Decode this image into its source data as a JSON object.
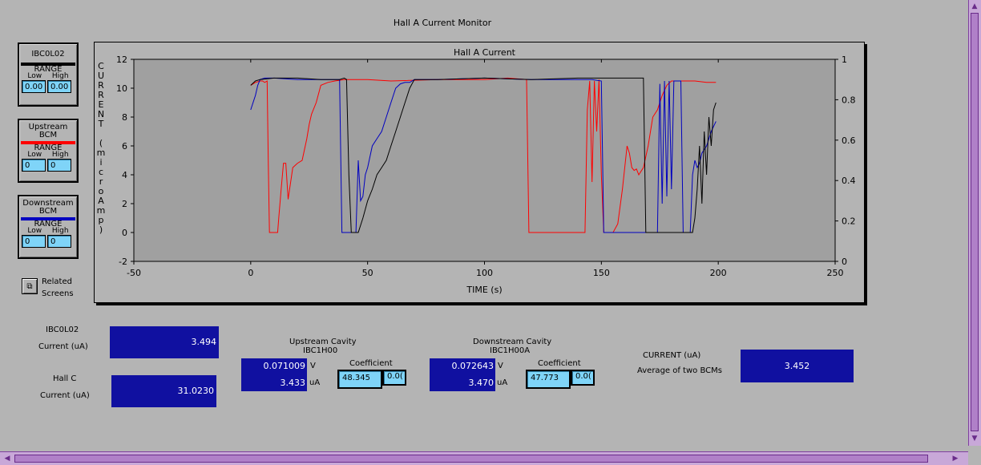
{
  "window": {
    "title": "Hall A Current Monitor"
  },
  "legends": [
    {
      "name": "IBC0L02",
      "color": "#000000",
      "range_label": "RANGE",
      "low_label": "Low",
      "high_label": "High",
      "low": "0.00",
      "high": "0.00"
    },
    {
      "name": "Upstream BCM",
      "color": "#ff0000",
      "range_label": "RANGE",
      "low_label": "Low",
      "high_label": "High",
      "low": "0",
      "high": "0"
    },
    {
      "name": "Downstream BCM",
      "color": "#0000c0",
      "range_label": "RANGE",
      "low_label": "Low",
      "high_label": "High",
      "low": "0",
      "high": "0"
    }
  ],
  "related": {
    "label_line1": "Related",
    "label_line2": "Screens",
    "icon": "related-screens-icon"
  },
  "chart_data": {
    "type": "line",
    "title": "Hall A Current",
    "xlabel": "TIME (s)",
    "ylabel": "CURRENT (microAmp)",
    "xlim": [
      -50,
      250
    ],
    "ylim": [
      -2,
      12
    ],
    "y2lim": [
      0,
      1
    ],
    "xticks": [
      -50,
      0,
      50,
      100,
      150,
      200,
      250
    ],
    "yticks": [
      -2,
      0,
      2,
      4,
      6,
      8,
      10,
      12
    ],
    "y2ticks": [
      0,
      0.2,
      0.4,
      0.6,
      0.8,
      1
    ],
    "grid": false,
    "series": [
      {
        "color": "#ff0000",
        "x": [
          0,
          2,
          4,
          5,
          6,
          7,
          7.5,
          8,
          9,
          10,
          11,
          11.5,
          12,
          13,
          14,
          15,
          16,
          18,
          20,
          22,
          24,
          25,
          26,
          28,
          30,
          33,
          36,
          40,
          50,
          60,
          80,
          100,
          110,
          118,
          119,
          120,
          130,
          140,
          143,
          144,
          145,
          146,
          147,
          148,
          149,
          150,
          151,
          155,
          157,
          159,
          161,
          162,
          163,
          164,
          165,
          166,
          168,
          170,
          172,
          174,
          176,
          178,
          180,
          185,
          190,
          195,
          199
        ],
        "y": [
          10.2,
          10.4,
          10.5,
          10.5,
          10.4,
          10.5,
          5,
          0,
          0,
          0,
          0,
          0,
          1,
          3,
          4.8,
          4.8,
          2.3,
          4.5,
          4.8,
          5,
          6.5,
          7.5,
          8.2,
          9,
          10.2,
          10.4,
          10.5,
          10.6,
          10.6,
          10.5,
          10.6,
          10.6,
          10.7,
          10.6,
          0,
          0,
          0,
          0,
          0,
          8.5,
          10.5,
          3.5,
          10.5,
          7,
          10.6,
          4,
          0,
          0,
          0.6,
          3,
          6,
          5.5,
          4.5,
          4.3,
          4.4,
          4,
          4.5,
          6,
          8,
          8.5,
          9.5,
          10.2,
          10.5,
          10.5,
          10.5,
          10.4,
          10.4
        ]
      },
      {
        "color": "#0000c0",
        "x": [
          0,
          2,
          3,
          4,
          6,
          10,
          20,
          30,
          38,
          39,
          40,
          41,
          45,
          46,
          47,
          48,
          49,
          50,
          52,
          54,
          56,
          58,
          60,
          62,
          64,
          66,
          68,
          70,
          80,
          100,
          120,
          140,
          146,
          150,
          151,
          155,
          170,
          174,
          175,
          176,
          177,
          178,
          179,
          180,
          181,
          182,
          183,
          184,
          185,
          186,
          187,
          188,
          189,
          190,
          191,
          192,
          193,
          195,
          197,
          199
        ],
        "y": [
          8.5,
          9.5,
          10.2,
          10.6,
          10.7,
          10.7,
          10.6,
          10.6,
          10.6,
          0,
          0,
          0,
          0,
          5,
          2.2,
          2.5,
          4,
          4.5,
          6,
          6.5,
          7,
          8,
          9,
          10,
          10.3,
          10.4,
          10.4,
          10.6,
          10.6,
          10.7,
          10.6,
          10.6,
          10.6,
          10.5,
          0,
          0,
          0,
          0,
          10.3,
          2,
          10.5,
          2.5,
          10.5,
          3,
          10.5,
          10.5,
          10.5,
          10.5,
          0,
          0,
          0,
          0,
          4,
          5,
          4.5,
          4.8,
          5.5,
          6,
          7,
          7.7
        ]
      },
      {
        "color": "#000000",
        "x": [
          0,
          2,
          4,
          10,
          20,
          30,
          38,
          40,
          41,
          42,
          43,
          44,
          45,
          46,
          48,
          50,
          52,
          54,
          56,
          58,
          60,
          62,
          64,
          66,
          68,
          70,
          80,
          100,
          120,
          140,
          150,
          160,
          168,
          169,
          170,
          180,
          188,
          189,
          190,
          191,
          192,
          193,
          194,
          195,
          196,
          197,
          198,
          199
        ],
        "y": [
          10.2,
          10.5,
          10.6,
          10.7,
          10.7,
          10.6,
          10.6,
          10.7,
          10.6,
          4,
          0,
          0,
          0,
          0,
          1,
          2.2,
          3,
          4,
          4.5,
          5,
          6,
          7,
          8,
          9,
          10,
          10.6,
          10.6,
          10.7,
          10.6,
          10.7,
          10.7,
          10.7,
          10.7,
          0,
          0,
          0,
          0,
          0,
          1,
          3,
          6,
          2,
          7,
          4,
          8,
          6,
          8.5,
          9
        ]
      }
    ]
  },
  "readouts": {
    "ibc0l02": {
      "label1": "IBC0L02",
      "label2": "Current (uA)",
      "value": "3.494"
    },
    "hallc": {
      "label1": "Hall C",
      "label2": "Current (uA)",
      "value": "31.0230"
    },
    "upstream": {
      "label1": "Upstream Cavity",
      "label2": "IBC1H00",
      "volts": "0.071009",
      "v_unit": "V",
      "current": "3.433",
      "ua_unit": "uA",
      "coef_label": "Coefficient",
      "coef": "48.345",
      "offset": "0.0("
    },
    "downstream": {
      "label1": "Downstream Cavity",
      "label2": "IBC1H00A",
      "volts": "0.072643",
      "v_unit": "V",
      "current": "3.470",
      "ua_unit": "uA",
      "coef_label": "Coefficient",
      "coef": "47.773",
      "offset": "0.0("
    },
    "average": {
      "label1": "CURRENT (uA)",
      "label2": "Average of two BCMs",
      "value": "3.452"
    }
  }
}
